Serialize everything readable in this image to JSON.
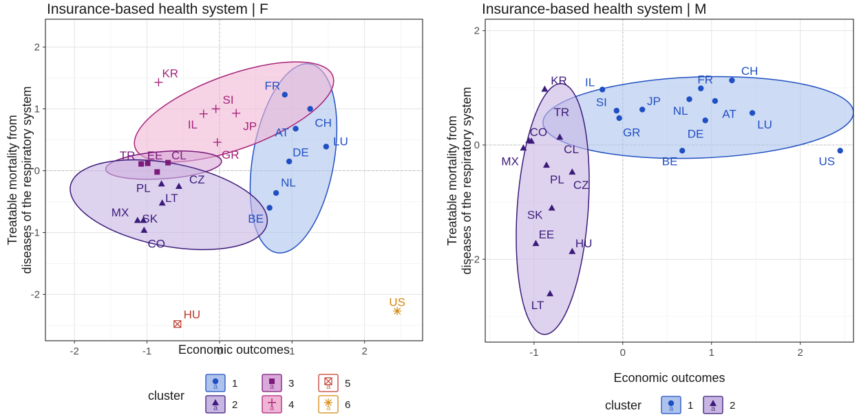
{
  "colors": {
    "cluster_1": "#1f4fc2",
    "cluster_1_fill": "#aec3ec",
    "cluster_2": "#3b1a7a",
    "cluster_2_fill": "#c8b6e2",
    "cluster_3": "#7b1a7a",
    "cluster_3_fill": "#d9a9d9",
    "cluster_4": "#a6237a",
    "cluster_4_fill": "#f0b5d4",
    "cluster_5": "#c0392b",
    "cluster_6": "#d4860b",
    "grid_major": "#e3e3e3",
    "grid_minor": "#f0f0f0",
    "zero_line": "#bfbfbf",
    "panel_border": "#333333"
  },
  "chart_data": [
    {
      "type": "scatter",
      "title": "Insurance-based health system | F",
      "xlabel": "Economic outcomes",
      "ylabel_lines": [
        "Treatable mortality from",
        "diseases of the respiratory system"
      ],
      "xlim": [
        -2.4,
        2.8
      ],
      "ylim": [
        -2.75,
        2.45
      ],
      "xticks": [
        -2,
        -1,
        0,
        1,
        2
      ],
      "yticks": [
        -2,
        -1,
        0,
        1,
        2
      ],
      "grid": true,
      "legend": {
        "title": "cluster",
        "position": "bottom",
        "entries": [
          {
            "label": "1",
            "cluster": 1
          },
          {
            "label": "3",
            "cluster": 3
          },
          {
            "label": "5",
            "cluster": 5
          },
          {
            "label": "2",
            "cluster": 2
          },
          {
            "label": "4",
            "cluster": 4
          },
          {
            "label": "6",
            "cluster": 6
          }
        ]
      },
      "ellipses": [
        {
          "cluster": 1,
          "cx": 1.02,
          "cy": 0.2,
          "rx": 0.56,
          "ry": 1.55,
          "angle": 10
        },
        {
          "cluster": 4,
          "cx": 0.2,
          "cy": 0.95,
          "rx": 1.45,
          "ry": 0.6,
          "angle": -20
        },
        {
          "cluster": 3,
          "cx": -0.77,
          "cy": 0.09,
          "rx": 0.8,
          "ry": 0.22,
          "angle": -4
        },
        {
          "cluster": 2,
          "cx": -0.7,
          "cy": -0.55,
          "rx": 1.38,
          "ry": 0.67,
          "angle": 11
        }
      ],
      "points": [
        {
          "label": "FR",
          "x": 0.9,
          "y": 1.23,
          "cluster": 1,
          "lx": 0.73,
          "ly": 1.38
        },
        {
          "label": "CH",
          "x": 1.25,
          "y": 1.0,
          "cluster": 1,
          "lx": 1.43,
          "ly": 0.78
        },
        {
          "label": "AT",
          "x": 1.05,
          "y": 0.68,
          "cluster": 1,
          "lx": 0.86,
          "ly": 0.62
        },
        {
          "label": "LU",
          "x": 1.47,
          "y": 0.39,
          "cluster": 1,
          "lx": 1.67,
          "ly": 0.48
        },
        {
          "label": "DE",
          "x": 0.96,
          "y": 0.15,
          "cluster": 1,
          "lx": 1.12,
          "ly": 0.3
        },
        {
          "label": "NL",
          "x": 0.78,
          "y": -0.36,
          "cluster": 1,
          "lx": 0.95,
          "ly": -0.19
        },
        {
          "label": "BE",
          "x": 0.69,
          "y": -0.6,
          "cluster": 1,
          "lx": 0.5,
          "ly": -0.77
        },
        {
          "label": "MX",
          "x": -1.13,
          "y": -0.8,
          "cluster": 2,
          "lx": -1.37,
          "ly": -0.67
        },
        {
          "label": "SK",
          "x": -1.05,
          "y": -0.8,
          "cluster": 2,
          "lx": -0.96,
          "ly": -0.77
        },
        {
          "label": "CO",
          "x": -1.04,
          "y": -0.96,
          "cluster": 2,
          "lx": -0.87,
          "ly": -1.18
        },
        {
          "label": "PL",
          "x": -0.8,
          "y": -0.21,
          "cluster": 2,
          "lx": -1.05,
          "ly": -0.28
        },
        {
          "label": "LT",
          "x": -0.79,
          "y": -0.52,
          "cluster": 2,
          "lx": -0.66,
          "ly": -0.44
        },
        {
          "label": "CZ",
          "x": -0.56,
          "y": -0.25,
          "cluster": 2,
          "lx": -0.31,
          "ly": -0.14
        },
        {
          "label": "TR",
          "x": -1.08,
          "y": 0.11,
          "cluster": 3,
          "lx": -1.27,
          "ly": 0.25
        },
        {
          "label": "EE",
          "x": -0.99,
          "y": 0.12,
          "cluster": 3,
          "lx": -0.89,
          "ly": 0.25
        },
        {
          "label": "CL",
          "x": -0.71,
          "y": 0.13,
          "cluster": 3,
          "lx": -0.56,
          "ly": 0.25
        },
        {
          "label": "PL3",
          "x": -0.86,
          "y": -0.02,
          "cluster": 3,
          "hide_label": true
        },
        {
          "label": "KR",
          "x": -0.84,
          "y": 1.43,
          "cluster": 4,
          "lx": -0.68,
          "ly": 1.58
        },
        {
          "label": "SI",
          "x": -0.05,
          "y": 1.0,
          "cluster": 4,
          "lx": 0.12,
          "ly": 1.15
        },
        {
          "label": "IL",
          "x": -0.22,
          "y": 0.92,
          "cluster": 4,
          "lx": -0.37,
          "ly": 0.75
        },
        {
          "label": "JP",
          "x": 0.23,
          "y": 0.93,
          "cluster": 4,
          "lx": 0.42,
          "ly": 0.72
        },
        {
          "label": "GR",
          "x": -0.03,
          "y": 0.46,
          "cluster": 4,
          "lx": 0.15,
          "ly": 0.26
        },
        {
          "label": "HU",
          "x": -0.58,
          "y": -2.48,
          "cluster": 5,
          "lx": -0.38,
          "ly": -2.32
        },
        {
          "label": "US",
          "x": 2.45,
          "y": -2.27,
          "cluster": 6,
          "lx": 2.45,
          "ly": -2.12
        }
      ]
    },
    {
      "type": "scatter",
      "title": "Insurance-based health system | M",
      "xlabel": "Economic outcomes",
      "ylabel_lines": [
        "Treatable mortality from",
        "diseases of the respiratory system"
      ],
      "xlim": [
        -1.55,
        2.6
      ],
      "ylim": [
        -3.45,
        2.2
      ],
      "xticks": [
        -1,
        0,
        1,
        2
      ],
      "yticks": [
        -2,
        0,
        2
      ],
      "grid": true,
      "legend": {
        "title": "cluster",
        "position": "bottom",
        "entries": [
          {
            "label": "1",
            "cluster": 1
          },
          {
            "label": "2",
            "cluster": 2
          }
        ]
      },
      "ellipses": [
        {
          "cluster": 1,
          "cx": 0.85,
          "cy": 0.48,
          "rx": 1.75,
          "ry": 0.71,
          "angle": -2
        },
        {
          "cluster": 2,
          "cx": -0.79,
          "cy": -1.12,
          "rx": 0.4,
          "ry": 2.2,
          "angle": 4
        }
      ],
      "points": [
        {
          "label": "IL",
          "x": -0.23,
          "y": 0.97,
          "cluster": 1,
          "lx": -0.37,
          "ly": 1.1
        },
        {
          "label": "SI",
          "x": -0.07,
          "y": 0.6,
          "cluster": 1,
          "lx": -0.24,
          "ly": 0.75
        },
        {
          "label": "JP",
          "x": 0.22,
          "y": 0.62,
          "cluster": 1,
          "lx": 0.35,
          "ly": 0.77
        },
        {
          "label": "GR",
          "x": -0.04,
          "y": 0.47,
          "cluster": 1,
          "lx": 0.1,
          "ly": 0.22
        },
        {
          "label": "FR",
          "x": 0.88,
          "y": 0.99,
          "cluster": 1,
          "lx": 0.93,
          "ly": 1.15
        },
        {
          "label": "CH",
          "x": 1.23,
          "y": 1.13,
          "cluster": 1,
          "lx": 1.43,
          "ly": 1.3
        },
        {
          "label": "NL",
          "x": 0.75,
          "y": 0.8,
          "cluster": 1,
          "lx": 0.65,
          "ly": 0.6
        },
        {
          "label": "AT",
          "x": 1.04,
          "y": 0.77,
          "cluster": 1,
          "lx": 1.2,
          "ly": 0.55
        },
        {
          "label": "DE",
          "x": 0.93,
          "y": 0.43,
          "cluster": 1,
          "lx": 0.82,
          "ly": 0.2
        },
        {
          "label": "LU",
          "x": 1.46,
          "y": 0.56,
          "cluster": 1,
          "lx": 1.6,
          "ly": 0.36
        },
        {
          "label": "BE",
          "x": 0.67,
          "y": -0.1,
          "cluster": 1,
          "lx": 0.53,
          "ly": -0.28
        },
        {
          "label": "US",
          "x": 2.45,
          "y": -0.1,
          "cluster": 1,
          "lx": 2.3,
          "ly": -0.28
        },
        {
          "label": "KR",
          "x": -0.88,
          "y": 0.98,
          "cluster": 2,
          "lx": -0.72,
          "ly": 1.13
        },
        {
          "label": "TR",
          "x": -1.03,
          "y": 0.07,
          "cluster": 2,
          "lx": -0.69,
          "ly": 0.58
        },
        {
          "label": "CO",
          "x": -1.06,
          "y": 0.08,
          "cluster": 2,
          "lx": -0.95,
          "ly": 0.23
        },
        {
          "label": "MX",
          "x": -1.12,
          "y": -0.05,
          "cluster": 2,
          "lx": -1.27,
          "ly": -0.28
        },
        {
          "label": "CL",
          "x": -0.71,
          "y": 0.14,
          "cluster": 2,
          "lx": -0.58,
          "ly": -0.07
        },
        {
          "label": "PL",
          "x": -0.86,
          "y": -0.35,
          "cluster": 2,
          "lx": -0.74,
          "ly": -0.6
        },
        {
          "label": "CZ",
          "x": -0.57,
          "y": -0.47,
          "cluster": 2,
          "lx": -0.47,
          "ly": -0.7
        },
        {
          "label": "SK",
          "x": -0.8,
          "y": -1.1,
          "cluster": 2,
          "lx": -0.99,
          "ly": -1.22
        },
        {
          "label": "EE",
          "x": -0.98,
          "y": -1.72,
          "cluster": 2,
          "lx": -0.86,
          "ly": -1.56
        },
        {
          "label": "HU",
          "x": -0.57,
          "y": -1.86,
          "cluster": 2,
          "lx": -0.44,
          "ly": -1.72
        },
        {
          "label": "LT",
          "x": -0.82,
          "y": -2.6,
          "cluster": 2,
          "lx": -0.96,
          "ly": -2.8
        }
      ]
    }
  ]
}
